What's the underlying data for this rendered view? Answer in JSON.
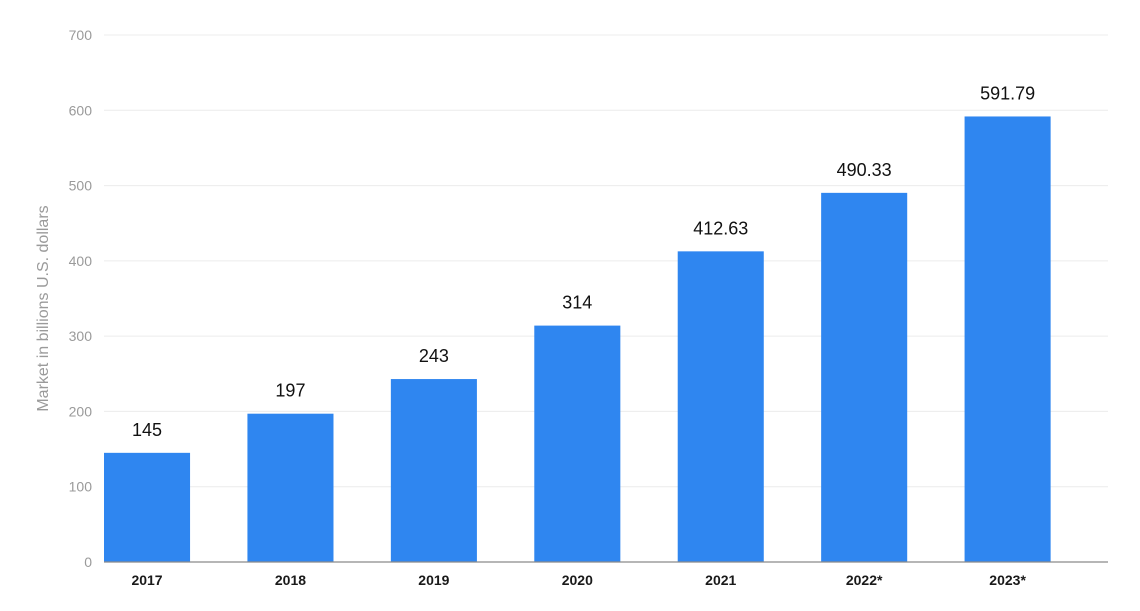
{
  "chart_data": {
    "type": "bar",
    "categories": [
      "2017",
      "2018",
      "2019",
      "2020",
      "2021",
      "2022*",
      "2023*"
    ],
    "values": [
      145,
      197,
      243,
      314,
      412.63,
      490.33,
      591.79
    ],
    "value_labels": [
      "145",
      "197",
      "243",
      "314",
      "412.63",
      "490.33",
      "591.79"
    ],
    "title": "",
    "xlabel": "",
    "ylabel": "Market in billions U.S. dollars",
    "ylim": [
      0,
      700
    ],
    "yticks": [
      0,
      100,
      200,
      300,
      400,
      500,
      600,
      700
    ],
    "grid": true,
    "bar_color": "#2f86f0"
  }
}
